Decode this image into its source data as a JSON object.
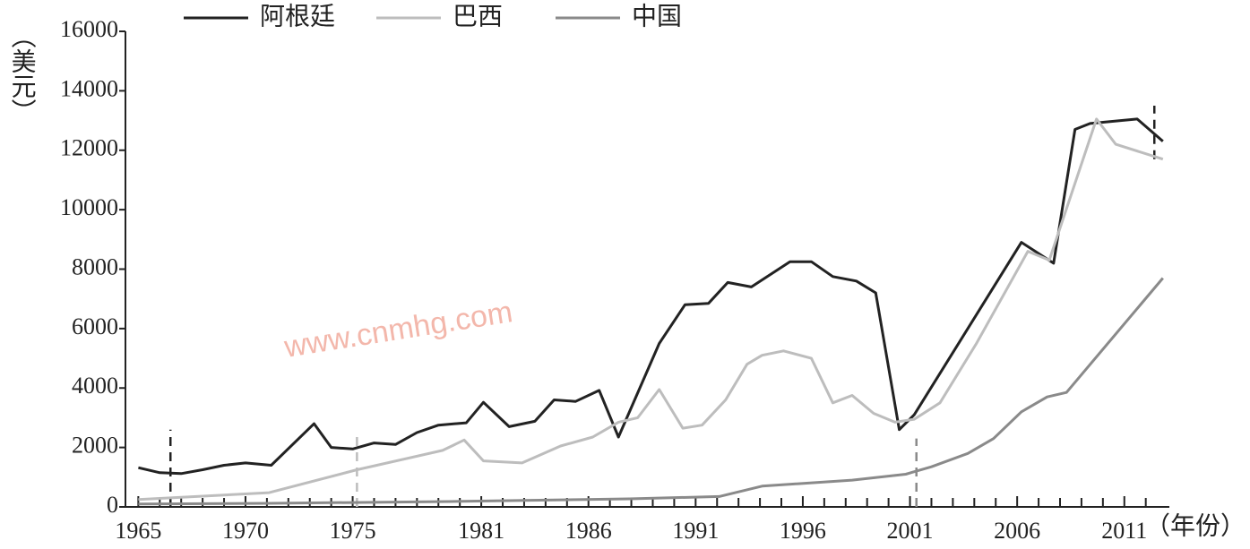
{
  "chart_data": {
    "type": "line",
    "y_label": "（美元）",
    "x_label": "（年份）",
    "watermark": "www.cnmhg.com",
    "xlim": [
      1964.4,
      2013.1
    ],
    "ylim": [
      0,
      16000
    ],
    "yticks": [
      0,
      2000,
      4000,
      6000,
      8000,
      10000,
      12000,
      14000,
      16000
    ],
    "xticks": [
      1965,
      1970,
      1975,
      1981,
      1986,
      1991,
      1996,
      2001,
      2006,
      2011
    ],
    "xminorticks": [
      1966,
      1967,
      1968,
      1969,
      1971,
      1972,
      1973,
      1974,
      1976,
      1977,
      1978,
      1979,
      1980,
      1982,
      1983,
      1984,
      1985,
      1987,
      1988,
      1989,
      1990,
      1992,
      1993,
      1994,
      1995,
      1997,
      1998,
      1999,
      2000,
      2002,
      2003,
      2004,
      2005,
      2007,
      2008,
      2009,
      2010,
      2012
    ],
    "series": [
      {
        "name": "阿根廷",
        "color": "#222222",
        "x": [
          1965,
          1966,
          1967,
          1968,
          1969,
          1970,
          1971.2,
          1973.2,
          1974,
          1975,
          1976,
          1977,
          1978,
          1979,
          1980.3,
          1981.1,
          1982.3,
          1983.5,
          1984.4,
          1985.4,
          1986.5,
          1987.4,
          1989.3,
          1990.5,
          1991.6,
          1992.5,
          1993.6,
          1995.4,
          1996.4,
          1997.4,
          1998.5,
          1999.4,
          2000.5,
          2001.2,
          2006.2,
          2007.7,
          2008.7,
          2009.4,
          2011.6,
          2012.8
        ],
        "values": [
          1320,
          1150,
          1120,
          1250,
          1400,
          1480,
          1400,
          2800,
          2000,
          1950,
          2150,
          2100,
          2500,
          2750,
          2830,
          3520,
          2700,
          2880,
          3600,
          3550,
          3920,
          2350,
          5500,
          6800,
          6850,
          7550,
          7400,
          8250,
          8250,
          7750,
          7600,
          7200,
          2600,
          3100,
          8900,
          8200,
          12700,
          12900,
          13050,
          12300
        ]
      },
      {
        "name": "巴西",
        "color": "#bdbdbd",
        "x": [
          1965,
          1971.1,
          1975.2,
          1979.2,
          1980.2,
          1981.1,
          1982.9,
          1984.7,
          1986.2,
          1987.4,
          1988.3,
          1989.3,
          1990.4,
          1991.3,
          1992.4,
          1993.4,
          1994.1,
          1995.1,
          1996.4,
          1997.4,
          1998.3,
          1999.3,
          2000.3,
          2001.2,
          2002.4,
          2004.1,
          2006.5,
          2007.5,
          2009.7,
          2010.6,
          2012.8
        ],
        "values": [
          250,
          480,
          1250,
          1900,
          2250,
          1550,
          1480,
          2050,
          2350,
          2850,
          3000,
          3950,
          2650,
          2750,
          3600,
          4800,
          5100,
          5250,
          5000,
          3500,
          3750,
          3150,
          2850,
          2950,
          3500,
          5500,
          8600,
          8300,
          13050,
          12200,
          11700
        ]
      },
      {
        "name": "中国",
        "color": "#8a8a8a",
        "x": [
          1965,
          1971.1,
          1979.5,
          1987.9,
          1992.1,
          1994.1,
          1998.3,
          2000.8,
          2002,
          2003.7,
          2004.9,
          2006.2,
          2007.4,
          2008.3,
          2012.8
        ],
        "values": [
          100,
          120,
          180,
          270,
          350,
          700,
          900,
          1100,
          1350,
          1800,
          2300,
          3200,
          3700,
          3850,
          7700
        ]
      }
    ],
    "reference_lines": [
      {
        "x": 1966.5,
        "from": 0,
        "to": 2600,
        "color": "#222222"
      },
      {
        "x": 1975.2,
        "from": 0,
        "to": 2400,
        "color": "#bdbdbd"
      },
      {
        "x": 2001.3,
        "from": 0,
        "to": 2300,
        "color": "#8a8a8a"
      },
      {
        "x": 2012.4,
        "from": 11700,
        "to": 13500,
        "color": "#222222"
      }
    ]
  }
}
